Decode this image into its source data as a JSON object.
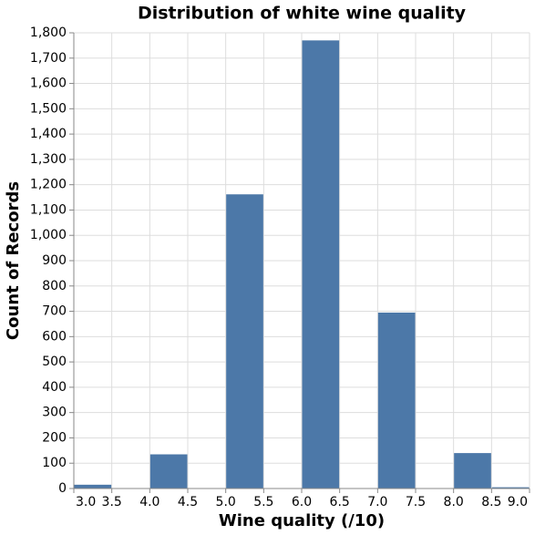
{
  "chart_data": {
    "type": "histogram",
    "title": "Distribution of white wine quality",
    "x_label": "Wine quality (/10)",
    "y_label": "Count of Records",
    "bins": [
      3.0,
      3.5,
      4.0,
      4.5,
      5.0,
      5.5,
      6.0,
      6.5,
      7.0,
      7.5,
      8.0,
      8.5,
      9.0
    ],
    "values": [
      15,
      0,
      135,
      0,
      1162,
      0,
      1770,
      0,
      695,
      0,
      140,
      5
    ],
    "color": "#4c78a8",
    "xlim": [
      3.0,
      9.0
    ],
    "xticks": [
      {
        "value": 3.0,
        "label": "3.0"
      },
      3.5,
      {
        "value": 4.0,
        "label": "4.0"
      },
      4.5,
      {
        "value": 5.0,
        "label": "5.0"
      },
      5.5,
      {
        "value": 6.0,
        "label": "6.0"
      },
      6.5,
      {
        "value": 7.0,
        "label": "7.0"
      },
      7.5,
      {
        "value": 8.0,
        "label": "8.0"
      },
      8.5,
      {
        "value": 9.0,
        "label": "9.0"
      }
    ],
    "ylim": [
      0,
      1800
    ],
    "yticks": [
      0,
      100,
      200,
      300,
      400,
      500,
      600,
      700,
      800,
      900,
      {
        "value": 1000,
        "label": "1,000"
      },
      {
        "value": 1100,
        "label": "1,100"
      },
      {
        "value": 1200,
        "label": "1,200"
      },
      {
        "value": 1300,
        "label": "1,300"
      },
      {
        "value": 1400,
        "label": "1,400"
      },
      {
        "value": 1500,
        "label": "1,500"
      },
      {
        "value": 1600,
        "label": "1,600"
      },
      {
        "value": 1700,
        "label": "1,700"
      },
      {
        "value": 1800,
        "label": "1,800"
      }
    ],
    "grid": true
  }
}
